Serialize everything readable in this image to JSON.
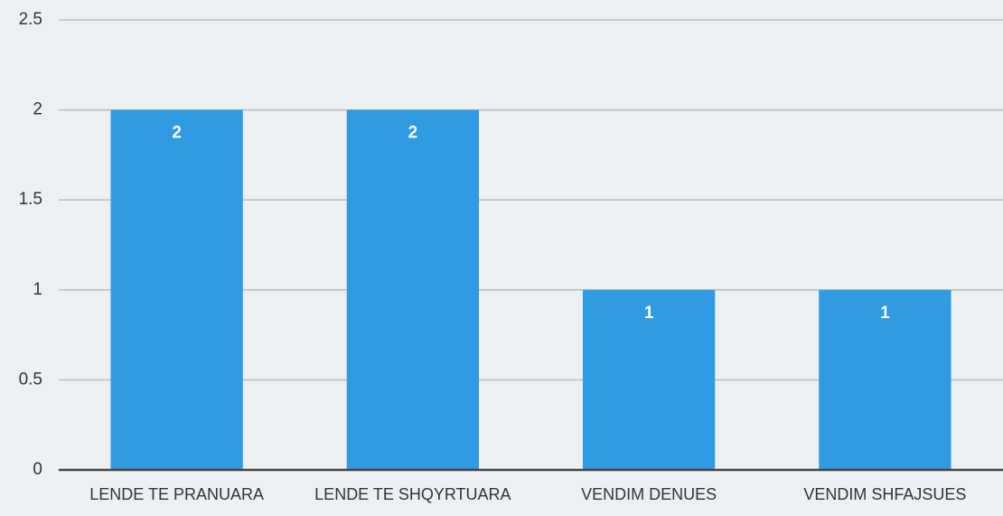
{
  "chart_data": {
    "type": "bar",
    "categories": [
      "LENDE TE PRANUARA",
      "LENDE TE SHQYRTUARA",
      "VENDIM DENUES",
      "VENDIM SHFAJSUES"
    ],
    "values": [
      2,
      2,
      1,
      1
    ],
    "color": "#2e9be2",
    "ylim": [
      0,
      2.5
    ],
    "yticks": [
      0,
      0.5,
      1,
      1.5,
      2,
      2.5
    ],
    "grid": true
  }
}
